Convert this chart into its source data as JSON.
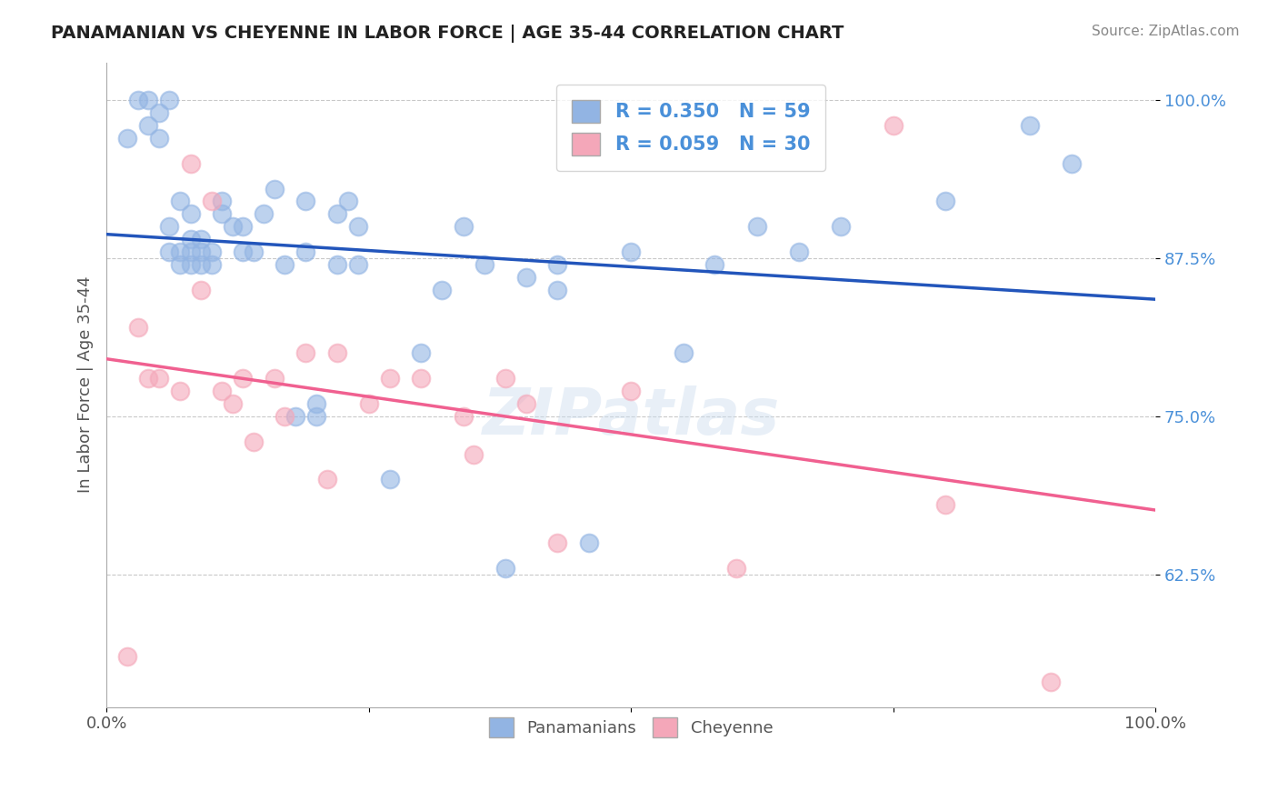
{
  "title": "PANAMANIAN VS CHEYENNE IN LABOR FORCE | AGE 35-44 CORRELATION CHART",
  "source": "Source: ZipAtlas.com",
  "ylabel": "In Labor Force | Age 35-44",
  "xlim": [
    0.0,
    1.0
  ],
  "ylim": [
    0.52,
    1.03
  ],
  "xtick_labels": [
    "0.0%",
    "",
    "",
    "",
    "100.0%"
  ],
  "ytick_labels": [
    "62.5%",
    "75.0%",
    "87.5%",
    "100.0%"
  ],
  "yticks": [
    0.625,
    0.75,
    0.875,
    1.0
  ],
  "legend_labels": [
    "Panamanians",
    "Cheyenne"
  ],
  "r_pan": 0.35,
  "n_pan": 59,
  "r_chey": 0.059,
  "n_chey": 30,
  "color_pan": "#92b4e3",
  "color_chey": "#f4a7b9",
  "line_color_pan": "#2255bb",
  "line_color_chey": "#f06090",
  "background_color": "#ffffff",
  "pan_x": [
    0.02,
    0.03,
    0.04,
    0.04,
    0.05,
    0.05,
    0.06,
    0.06,
    0.06,
    0.07,
    0.07,
    0.07,
    0.08,
    0.08,
    0.08,
    0.08,
    0.09,
    0.09,
    0.09,
    0.1,
    0.1,
    0.11,
    0.11,
    0.12,
    0.13,
    0.13,
    0.14,
    0.15,
    0.16,
    0.17,
    0.18,
    0.19,
    0.19,
    0.2,
    0.2,
    0.22,
    0.22,
    0.23,
    0.24,
    0.24,
    0.27,
    0.3,
    0.32,
    0.34,
    0.36,
    0.38,
    0.4,
    0.43,
    0.43,
    0.46,
    0.5,
    0.55,
    0.58,
    0.62,
    0.66,
    0.7,
    0.8,
    0.88,
    0.92
  ],
  "pan_y": [
    0.97,
    1.0,
    0.98,
    1.0,
    0.97,
    0.99,
    0.88,
    0.9,
    1.0,
    0.87,
    0.88,
    0.92,
    0.87,
    0.88,
    0.89,
    0.91,
    0.87,
    0.88,
    0.89,
    0.87,
    0.88,
    0.91,
    0.92,
    0.9,
    0.88,
    0.9,
    0.88,
    0.91,
    0.93,
    0.87,
    0.75,
    0.88,
    0.92,
    0.75,
    0.76,
    0.87,
    0.91,
    0.92,
    0.87,
    0.9,
    0.7,
    0.8,
    0.85,
    0.9,
    0.87,
    0.63,
    0.86,
    0.85,
    0.87,
    0.65,
    0.88,
    0.8,
    0.87,
    0.9,
    0.88,
    0.9,
    0.92,
    0.98,
    0.95
  ],
  "chey_x": [
    0.02,
    0.03,
    0.04,
    0.05,
    0.07,
    0.08,
    0.09,
    0.1,
    0.11,
    0.12,
    0.13,
    0.14,
    0.16,
    0.17,
    0.19,
    0.21,
    0.22,
    0.25,
    0.27,
    0.3,
    0.34,
    0.35,
    0.38,
    0.4,
    0.43,
    0.5,
    0.6,
    0.75,
    0.8,
    0.9
  ],
  "chey_y": [
    0.56,
    0.82,
    0.78,
    0.78,
    0.77,
    0.95,
    0.85,
    0.92,
    0.77,
    0.76,
    0.78,
    0.73,
    0.78,
    0.75,
    0.8,
    0.7,
    0.8,
    0.76,
    0.78,
    0.78,
    0.75,
    0.72,
    0.78,
    0.76,
    0.65,
    0.77,
    0.63,
    0.98,
    0.68,
    0.54
  ]
}
